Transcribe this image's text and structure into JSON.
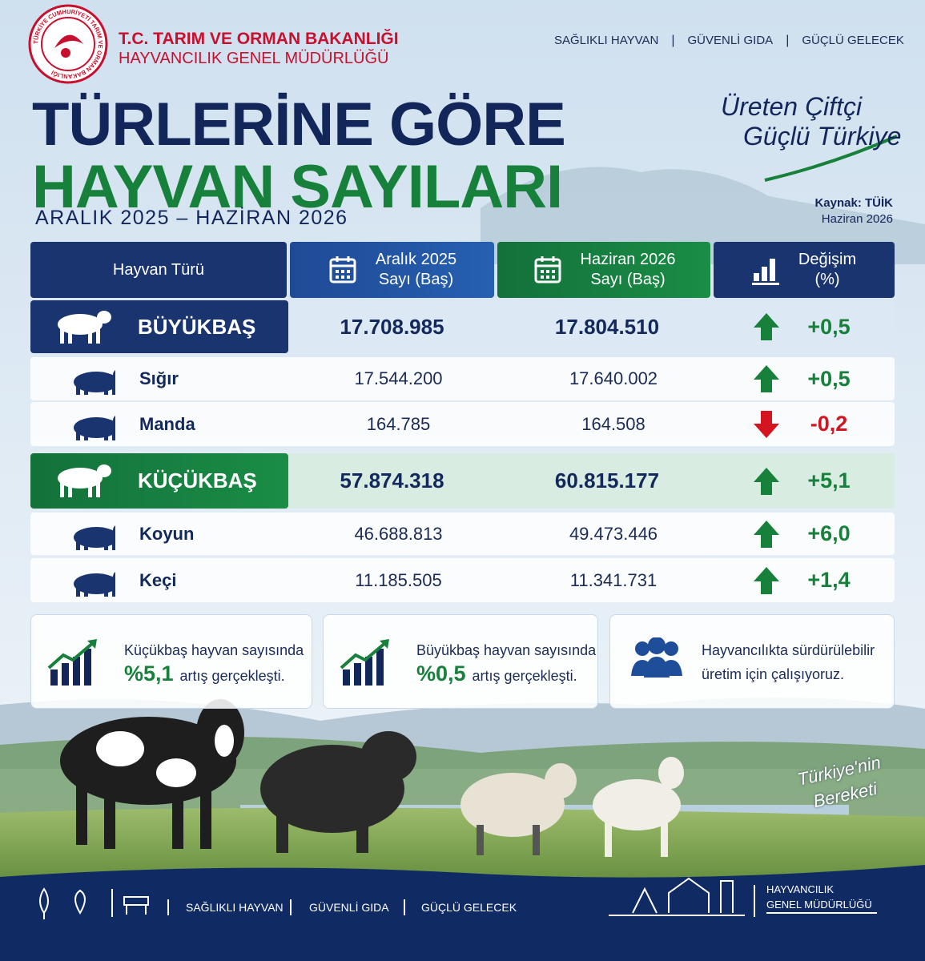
{
  "header": {
    "seal_text": "TÜRKİYE CUMHURİYETİ TARIM VE ORMAN BAKANLIĞI",
    "ministry": "T.C. TARIM VE ORMAN BAKANLIĞI",
    "department": "HAYVANCILIK GENEL MÜDÜRLÜĞÜ",
    "nav": [
      "SAĞLIKLI HAYVAN",
      "GÜVENLİ GIDA",
      "GÜÇLÜ GELECEK"
    ]
  },
  "title": {
    "line1": "TÜRLERİNE GÖRE",
    "line2": "HAYVAN SAYILARI",
    "period": "ARALIK 2025 – HAZİRAN 2026"
  },
  "slogan": {
    "line1": "Üreten Çiftçi",
    "line2": "Güçlü Türkiye"
  },
  "source": {
    "label": "Kaynak: TÜİK",
    "date": "Haziran 2026"
  },
  "table": {
    "headers": [
      [
        "Hayvan Türü"
      ],
      [
        "Aralık 2025",
        "Sayı (Baş)"
      ],
      [
        "Haziran 2026",
        "Sayı (Baş)"
      ],
      [
        "Değişim",
        "(%)"
      ]
    ],
    "rows": [
      [
        "BÜYÜKBAŞ",
        "17.708.985",
        "17.804.510",
        "+0,5"
      ],
      [
        "Sığır",
        "17.544.200",
        "17.640.002",
        "+0,5"
      ],
      [
        "Manda",
        "164.785",
        "164.508",
        "-0,2"
      ],
      [
        "KÜÇÜKBAŞ",
        "57.874.318",
        "60.815.177",
        "+5,1"
      ],
      [
        "Koyun",
        "46.688.813",
        "49.473.446",
        "+6,0"
      ],
      [
        "Keçi",
        "11.185.505",
        "11.341.731",
        "+1,4"
      ]
    ]
  },
  "cards": [
    {
      "line1": "Küçükbaş hayvan sayısında",
      "highlight": "%5,1",
      "line2": "artış gerçekleşti."
    },
    {
      "line1": "Büyükbaş hayvan sayısında",
      "highlight": "%0,5",
      "line2": "artış gerçekleşti."
    },
    {
      "line1": "Hayvancılıkta sürdürülebilir",
      "line2": "üretim için çalışıyoruz."
    }
  ],
  "badge": {
    "line1": "Türkiye'nin",
    "line2": "Bereketi"
  },
  "footer": {
    "nav": [
      "SAĞLIKLI HAYVAN",
      "GÜVENLİ GIDA",
      "GÜÇLÜ GELECEK"
    ],
    "org_line1": "HAYVANCILIK",
    "org_line2": "GENEL MÜDÜRLÜĞÜ"
  }
}
